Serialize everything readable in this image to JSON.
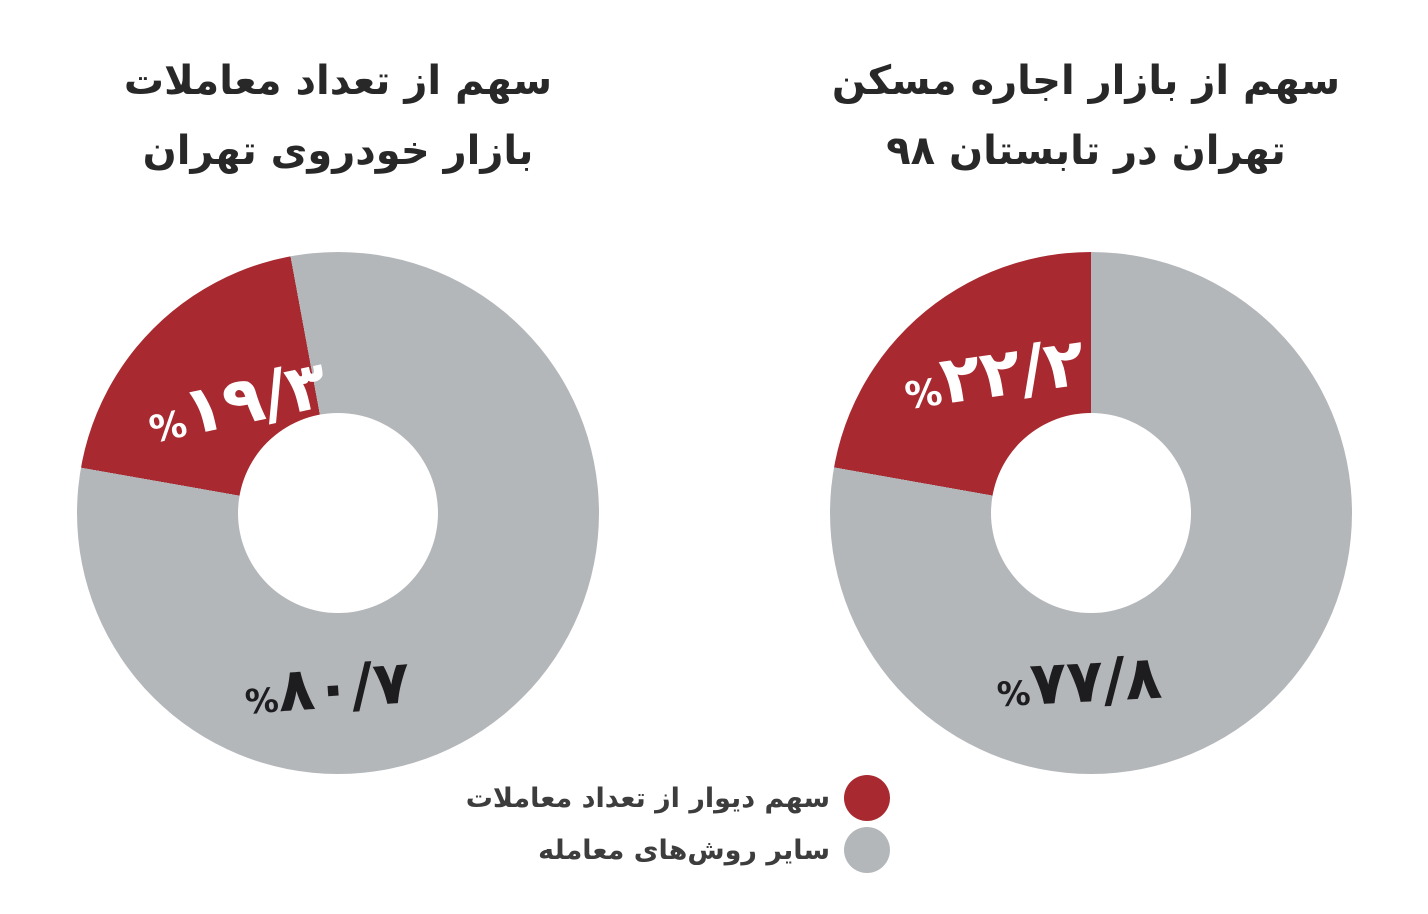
{
  "accent_red": "#a8292f",
  "neutral_gray": "#b4b7ba",
  "background": "#ffffff",
  "percent_sign": "%",
  "chart_data": [
    {
      "type": "pie",
      "variant": "donut",
      "title_lines": [
        "سهم از تعداد معاملات",
        "بازار خودروی تهران"
      ],
      "title": "سهم از تعداد معاملات بازار خودروی تهران",
      "rotation_deg": -10.5,
      "legend_position": "bottom-center",
      "series": [
        {
          "name": "سهم دیوار از تعداد معاملات",
          "value": 19.3,
          "value_fa": "۱۹/۳",
          "color": "#a8292f",
          "label_color": "#ffffff"
        },
        {
          "name": "سایر روش‌های معامله",
          "value": 80.7,
          "value_fa": "۸۰/۷",
          "color": "#b4b7ba",
          "label_color": "#1d1d1f"
        }
      ]
    },
    {
      "type": "pie",
      "variant": "donut",
      "title_lines": [
        "سهم از بازار اجاره مسکن",
        "تهران در تابستان ۹۸"
      ],
      "title": "سهم از بازار اجاره مسکن تهران در تابستان ۹۸",
      "rotation_deg": 0,
      "legend_position": "bottom-center",
      "series": [
        {
          "name": "سهم دیوار از تعداد معاملات",
          "value": 22.2,
          "value_fa": "۲۲/۲",
          "color": "#a8292f",
          "label_color": "#ffffff"
        },
        {
          "name": "سایر روش‌های معامله",
          "value": 77.8,
          "value_fa": "۷۷/۸",
          "color": "#b4b7ba",
          "label_color": "#1d1d1f"
        }
      ]
    }
  ],
  "legend": {
    "items": [
      {
        "label": "سهم دیوار از تعداد معاملات",
        "color": "#a8292f"
      },
      {
        "label": "سایر روش‌های معامله",
        "color": "#b4b7ba"
      }
    ]
  }
}
